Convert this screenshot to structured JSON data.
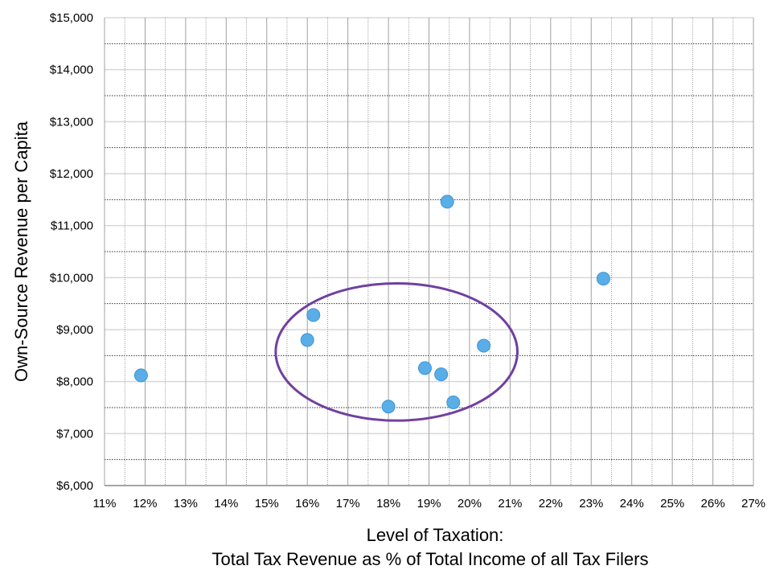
{
  "chart_data": {
    "type": "scatter",
    "title": "",
    "xlabel_lines": [
      "Level of Taxation:",
      "Total Tax Revenue as % of Total Income of all Tax Filers"
    ],
    "ylabel": "Own-Source Revenue per Capita",
    "xlim": [
      11,
      27
    ],
    "ylim": [
      6000,
      15000
    ],
    "x_ticks": [
      11,
      12,
      13,
      14,
      15,
      16,
      17,
      18,
      19,
      20,
      21,
      22,
      23,
      24,
      25,
      26,
      27
    ],
    "x_tick_labels": [
      "11%",
      "12%",
      "13%",
      "14%",
      "15%",
      "16%",
      "17%",
      "18%",
      "19%",
      "20%",
      "21%",
      "22%",
      "23%",
      "24%",
      "25%",
      "26%",
      "27%"
    ],
    "y_ticks": [
      6000,
      7000,
      8000,
      9000,
      10000,
      11000,
      12000,
      13000,
      14000,
      15000
    ],
    "y_tick_labels": [
      "$6,000",
      "$7,000",
      "$8,000",
      "$9,000",
      "$10,000",
      "$11,000",
      "$12,000",
      "$13,000",
      "$14,000",
      "$15,000"
    ],
    "grid": true,
    "points": [
      {
        "x": 11.9,
        "y": 8120
      },
      {
        "x": 16.15,
        "y": 9280
      },
      {
        "x": 16.0,
        "y": 8800
      },
      {
        "x": 19.45,
        "y": 11460
      },
      {
        "x": 23.3,
        "y": 9980
      },
      {
        "x": 20.35,
        "y": 8690
      },
      {
        "x": 18.9,
        "y": 8260
      },
      {
        "x": 19.3,
        "y": 8140
      },
      {
        "x": 19.6,
        "y": 7600
      },
      {
        "x": 18.0,
        "y": 7520
      }
    ],
    "annotation_ellipse": {
      "cx": 18.2,
      "cy": 8570,
      "rx": 2.98,
      "ry": 1320
    },
    "colors": {
      "point": "#5aaee8",
      "point_edge": "#3f93d3",
      "ellipse": "#7040a0"
    }
  }
}
